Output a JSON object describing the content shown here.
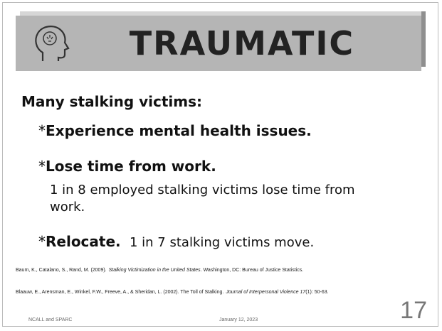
{
  "slide": {
    "title": "TRAUMATIC",
    "heading": "Many stalking victims:",
    "items": [
      {
        "marker": "*",
        "bold": "Experience mental health issues."
      },
      {
        "marker": "*",
        "bold": "Lose time from work.",
        "detail": "1 in 8 employed stalking victims lose time from work."
      },
      {
        "marker": "*",
        "bold": "Relocate.",
        "detail": "1 in 7 stalking victims move."
      }
    ],
    "references": [
      {
        "before": "Baum, K., Catalano, S., Rand, M. (2009).",
        "italic": "Stalking Victimization in the United States",
        "after": ". Washington, DC: Bureau of Justice Statistics."
      },
      {
        "before": "Blaauw, E., Arensman, E., Winkel, F.W., Freeve, A., & Sheridan, L. (2002). The Toll of Stalking.",
        "italic": "Journal of Interpersonal Violence 17",
        "after": "(1): 50-63."
      }
    ],
    "footer": {
      "left": "NCALL and SPARC",
      "date": "January 12, 2023",
      "page": "17"
    }
  }
}
